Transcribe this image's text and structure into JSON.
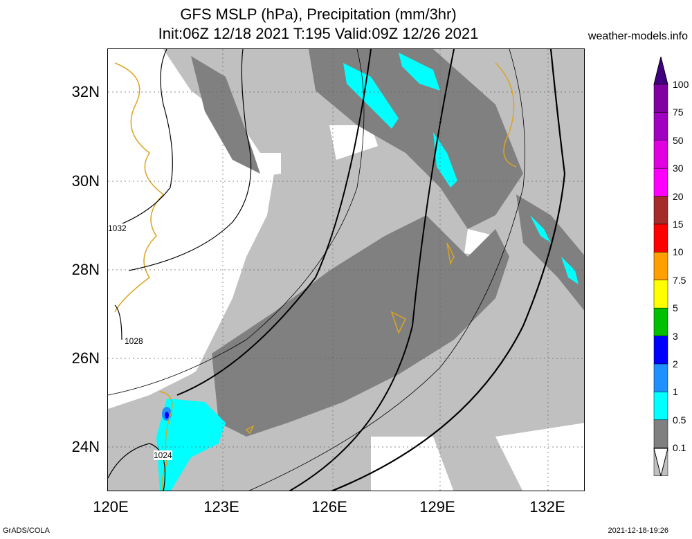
{
  "header": {
    "title_line1": "GFS MSLP (hPa), Precipitation (mm/3hr)",
    "title_line2": "Init:06Z 12/18 2021 T:195 Valid:09Z 12/26 2021",
    "site": "weather-models.info"
  },
  "axes": {
    "lat_labels": [
      "32N",
      "30N",
      "28N",
      "26N",
      "24N"
    ],
    "lon_labels": [
      "120E",
      "123E",
      "126E",
      "129E",
      "132E"
    ]
  },
  "isobar_labels": [
    "1032",
    "1028",
    "1024"
  ],
  "colorbar": {
    "labels": [
      "100",
      "75",
      "50",
      "30",
      "20",
      "15",
      "10",
      "7.5",
      "5",
      "3",
      "2",
      "1",
      "0.5",
      "0.1"
    ],
    "colors": [
      "#8000a0",
      "#a000c0",
      "#e000e0",
      "#ff00ff",
      "#a52a2a",
      "#ff0000",
      "#ffa000",
      "#ffff00",
      "#00c000",
      "#0000ff",
      "#1e90ff",
      "#00ffff",
      "#808080",
      "#c0c0c0"
    ]
  },
  "footer": {
    "left": "GrADS/COLA",
    "right": "2021-12-18-19:26"
  }
}
